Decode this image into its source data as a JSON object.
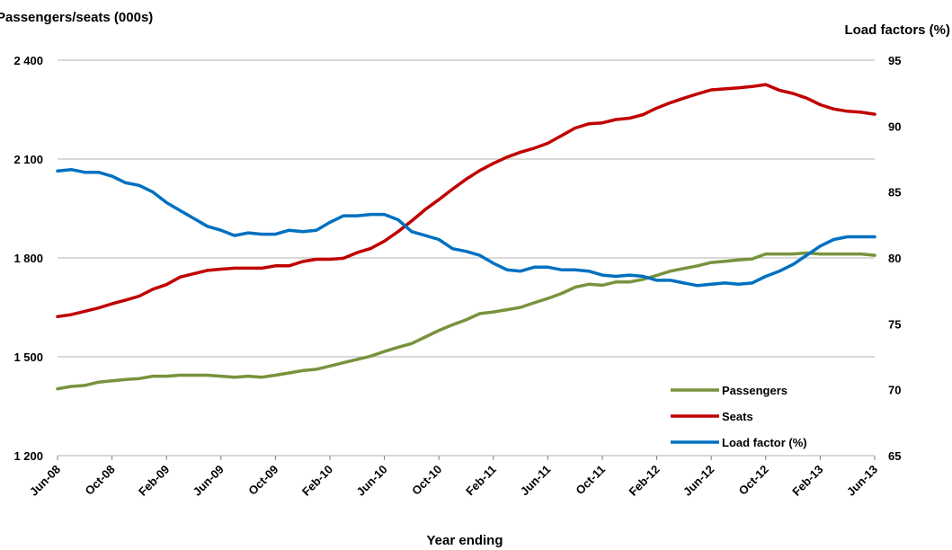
{
  "chart_data": {
    "type": "line",
    "title": "",
    "xlabel": "Year ending",
    "ylabel_left": "Passengers/seats (000s)",
    "ylabel_right": "Load factors (%)",
    "ylim_left": [
      1200,
      2400
    ],
    "ylim_right": [
      65,
      95
    ],
    "yticks_left": [
      "1 200",
      "1 500",
      "1 800",
      "2 100",
      "2 400"
    ],
    "yticks_right": [
      "65",
      "70",
      "75",
      "80",
      "85",
      "90",
      "95"
    ],
    "x_ticks": [
      "Jun-08",
      "Oct-08",
      "Feb-09",
      "Jun-09",
      "Oct-09",
      "Feb-10",
      "Jun-10",
      "Oct-10",
      "Feb-11",
      "Jun-11",
      "Oct-11",
      "Feb-12",
      "Jun-12",
      "Oct-12",
      "Feb-13",
      "Jun-13"
    ],
    "x": [
      "Jun-08",
      "Jul-08",
      "Aug-08",
      "Sep-08",
      "Oct-08",
      "Nov-08",
      "Dec-08",
      "Jan-09",
      "Feb-09",
      "Mar-09",
      "Apr-09",
      "May-09",
      "Jun-09",
      "Jul-09",
      "Aug-09",
      "Sep-09",
      "Oct-09",
      "Nov-09",
      "Dec-09",
      "Jan-10",
      "Feb-10",
      "Mar-10",
      "Apr-10",
      "May-10",
      "Jun-10",
      "Jul-10",
      "Aug-10",
      "Sep-10",
      "Oct-10",
      "Nov-10",
      "Dec-10",
      "Jan-11",
      "Feb-11",
      "Mar-11",
      "Apr-11",
      "May-11",
      "Jun-11",
      "Jul-11",
      "Aug-11",
      "Sep-11",
      "Oct-11",
      "Nov-11",
      "Dec-11",
      "Jan-12",
      "Feb-12",
      "Mar-12",
      "Apr-12",
      "May-12",
      "Jun-12",
      "Jul-12",
      "Aug-12",
      "Sep-12",
      "Oct-12",
      "Nov-12",
      "Dec-12",
      "Jan-13",
      "Feb-13",
      "Mar-13",
      "Apr-13",
      "May-13",
      "Jun-13"
    ],
    "legend_position": "bottom-right",
    "grid": true,
    "series": [
      {
        "name": "Passengers",
        "axis": "left",
        "color": "#77933c",
        "values": [
          1403,
          1410,
          1413,
          1423,
          1427,
          1431,
          1434,
          1441,
          1441,
          1444,
          1444,
          1444,
          1441,
          1438,
          1441,
          1438,
          1444,
          1451,
          1458,
          1462,
          1472,
          1482,
          1492,
          1502,
          1516,
          1529,
          1540,
          1560,
          1580,
          1597,
          1612,
          1631,
          1636,
          1643,
          1650,
          1664,
          1677,
          1692,
          1711,
          1720,
          1717,
          1727,
          1727,
          1735,
          1747,
          1760,
          1768,
          1776,
          1786,
          1790,
          1794,
          1797,
          1812,
          1812,
          1812,
          1815,
          1812,
          1812,
          1812,
          1812,
          1808
        ]
      },
      {
        "name": "Seats",
        "axis": "left",
        "color": "#c00000",
        "values": [
          1622,
          1628,
          1638,
          1648,
          1661,
          1672,
          1684,
          1705,
          1719,
          1742,
          1752,
          1762,
          1766,
          1769,
          1769,
          1769,
          1776,
          1776,
          1789,
          1796,
          1796,
          1799,
          1816,
          1829,
          1851,
          1880,
          1912,
          1947,
          1977,
          2009,
          2039,
          2065,
          2087,
          2106,
          2121,
          2133,
          2148,
          2171,
          2194,
          2207,
          2210,
          2220,
          2224,
          2235,
          2255,
          2271,
          2285,
          2298,
          2310,
          2313,
          2316,
          2320,
          2326,
          2309,
          2299,
          2285,
          2265,
          2252,
          2245,
          2242,
          2236
        ]
      },
      {
        "name": "Load factor (%)",
        "axis": "right",
        "color": "#0070c0",
        "values": [
          86.6,
          86.7,
          86.5,
          86.5,
          86.2,
          85.7,
          85.5,
          85.0,
          84.2,
          83.6,
          83.0,
          82.4,
          82.1,
          81.7,
          81.9,
          81.8,
          81.8,
          82.1,
          82.0,
          82.1,
          82.7,
          83.2,
          83.2,
          83.3,
          83.3,
          82.9,
          82.0,
          81.7,
          81.4,
          80.7,
          80.5,
          80.2,
          79.6,
          79.1,
          79.0,
          79.3,
          79.3,
          79.1,
          79.1,
          79.0,
          78.7,
          78.6,
          78.7,
          78.6,
          78.3,
          78.3,
          78.1,
          77.9,
          78.0,
          78.1,
          78.0,
          78.1,
          78.6,
          79.0,
          79.5,
          80.2,
          80.9,
          81.4,
          81.6,
          81.6,
          81.6
        ]
      }
    ]
  }
}
